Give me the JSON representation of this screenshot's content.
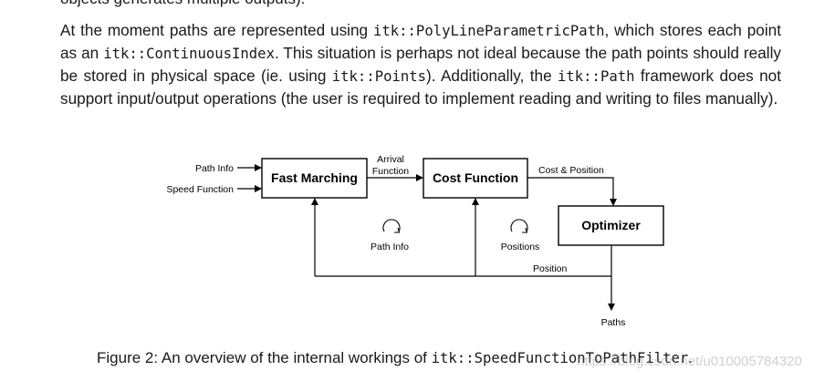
{
  "clipped_line": "objects generates multiple outputs).",
  "paragraph": {
    "t1": "At the moment paths are represented using ",
    "c1": "itk::PolyLineParametricPath",
    "t2": ", which stores each point as an ",
    "c2": "itk::ContinuousIndex",
    "t3": ". This situation is perhaps not ideal because the path points should really be stored in physical space (ie. using ",
    "c3": "itk::Points",
    "t4": "). Additionally, the ",
    "c4": "itk::Path",
    "t5": " framework does not support input/output operations (the user is required to implement reading and writing to files manually)."
  },
  "diagram": {
    "nodes": {
      "fast_marching": "Fast Marching",
      "cost_function": "Cost Function",
      "optimizer": "Optimizer"
    },
    "labels": {
      "path_info_in": "Path Info",
      "speed_function_in": "Speed Function",
      "arrival": "Arrival",
      "function": "Function",
      "cost_position": "Cost & Position",
      "path_info_loop": "Path Info",
      "positions_loop": "Positions",
      "position_feedback": "Position",
      "paths_out": "Paths"
    }
  },
  "caption": {
    "prefix": "Figure 2: An overview of the internal workings of ",
    "code": "itk::SpeedFunctionToPathFilter",
    "suffix": "."
  },
  "watermark": "https://blog.csdn.net/u010005784320"
}
